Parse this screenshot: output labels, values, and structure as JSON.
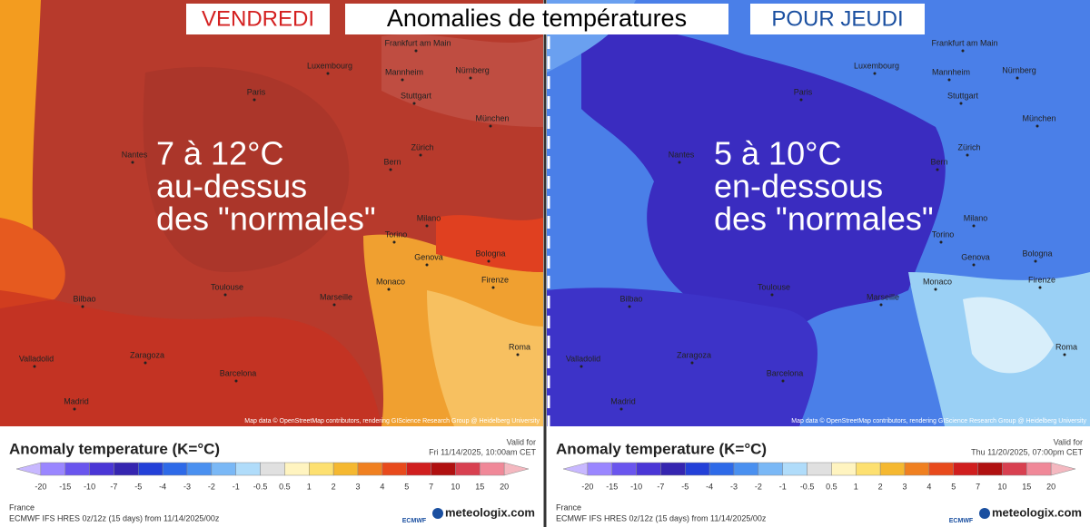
{
  "header": {
    "left_label": "VENDREDI",
    "title": "Anomalies de températures",
    "right_label": "POUR JEUDI"
  },
  "panels": [
    {
      "overlay": [
        "7 à 12°C",
        "au-dessus",
        "des \"normales\""
      ],
      "cities": [
        "Frankfurt am Main",
        "Luxembourg",
        "Mannheim",
        "Nürnberg",
        "Paris",
        "Stuttgart",
        "München",
        "Nantes",
        "Zürich",
        "Bern",
        "Milano",
        "Torino",
        "Genova",
        "Bologna",
        "Bilbao",
        "Toulouse",
        "Monaco",
        "Marseille",
        "Firenze",
        "Valladolid",
        "Zaragoza",
        "Barcelona",
        "Madrid",
        "Roma"
      ],
      "attribution": "Map data © OpenStreetMap contributors, rendering GIScience Research Group @ Heidelberg University",
      "legend": {
        "title": "Anomaly temperature (K=°C)",
        "valid_label": "Valid for",
        "valid_time": "Fri 11/14/2025, 10:00am CET",
        "ticks": [
          "-20",
          "-15",
          "-10",
          "-7",
          "-5",
          "-4",
          "-3",
          "-2",
          "-1",
          "-0.5",
          "0.5",
          "1",
          "2",
          "3",
          "4",
          "5",
          "7",
          "10",
          "15",
          "20"
        ],
        "region": "France",
        "model": "ECMWF IFS HRES 0z/12z (15 days) from 11/14/2025/00z",
        "ecmwf": "ECMWF",
        "brand": "meteologix.com"
      }
    },
    {
      "overlay": [
        "5 à 10°C",
        "en-dessous",
        "des \"normales\""
      ],
      "cities": [
        "Frankfurt am Main",
        "Luxembourg",
        "Mannheim",
        "Nürnberg",
        "Paris",
        "Stuttgart",
        "München",
        "Nantes",
        "Zürich",
        "Bern",
        "Milano",
        "Torino",
        "Genova",
        "Bologna",
        "Bilbao",
        "Toulouse",
        "Monaco",
        "Marseille",
        "Firenze",
        "Valladolid",
        "Zaragoza",
        "Barcelona",
        "Madrid",
        "Roma"
      ],
      "attribution": "Map data © OpenStreetMap contributors, rendering GIScience Research Group @ Heidelberg University",
      "legend": {
        "title": "Anomaly temperature (K=°C)",
        "valid_label": "Valid for",
        "valid_time": "Thu 11/20/2025, 07:00pm CET",
        "ticks": [
          "-20",
          "-15",
          "-10",
          "-7",
          "-5",
          "-4",
          "-3",
          "-2",
          "-1",
          "-0.5",
          "0.5",
          "1",
          "2",
          "3",
          "4",
          "5",
          "7",
          "10",
          "15",
          "20"
        ],
        "region": "France",
        "model": "ECMWF IFS HRES 0z/12z (15 days) from 11/14/2025/00z",
        "ecmwf": "ECMWF",
        "brand": "meteologix.com"
      }
    }
  ]
}
